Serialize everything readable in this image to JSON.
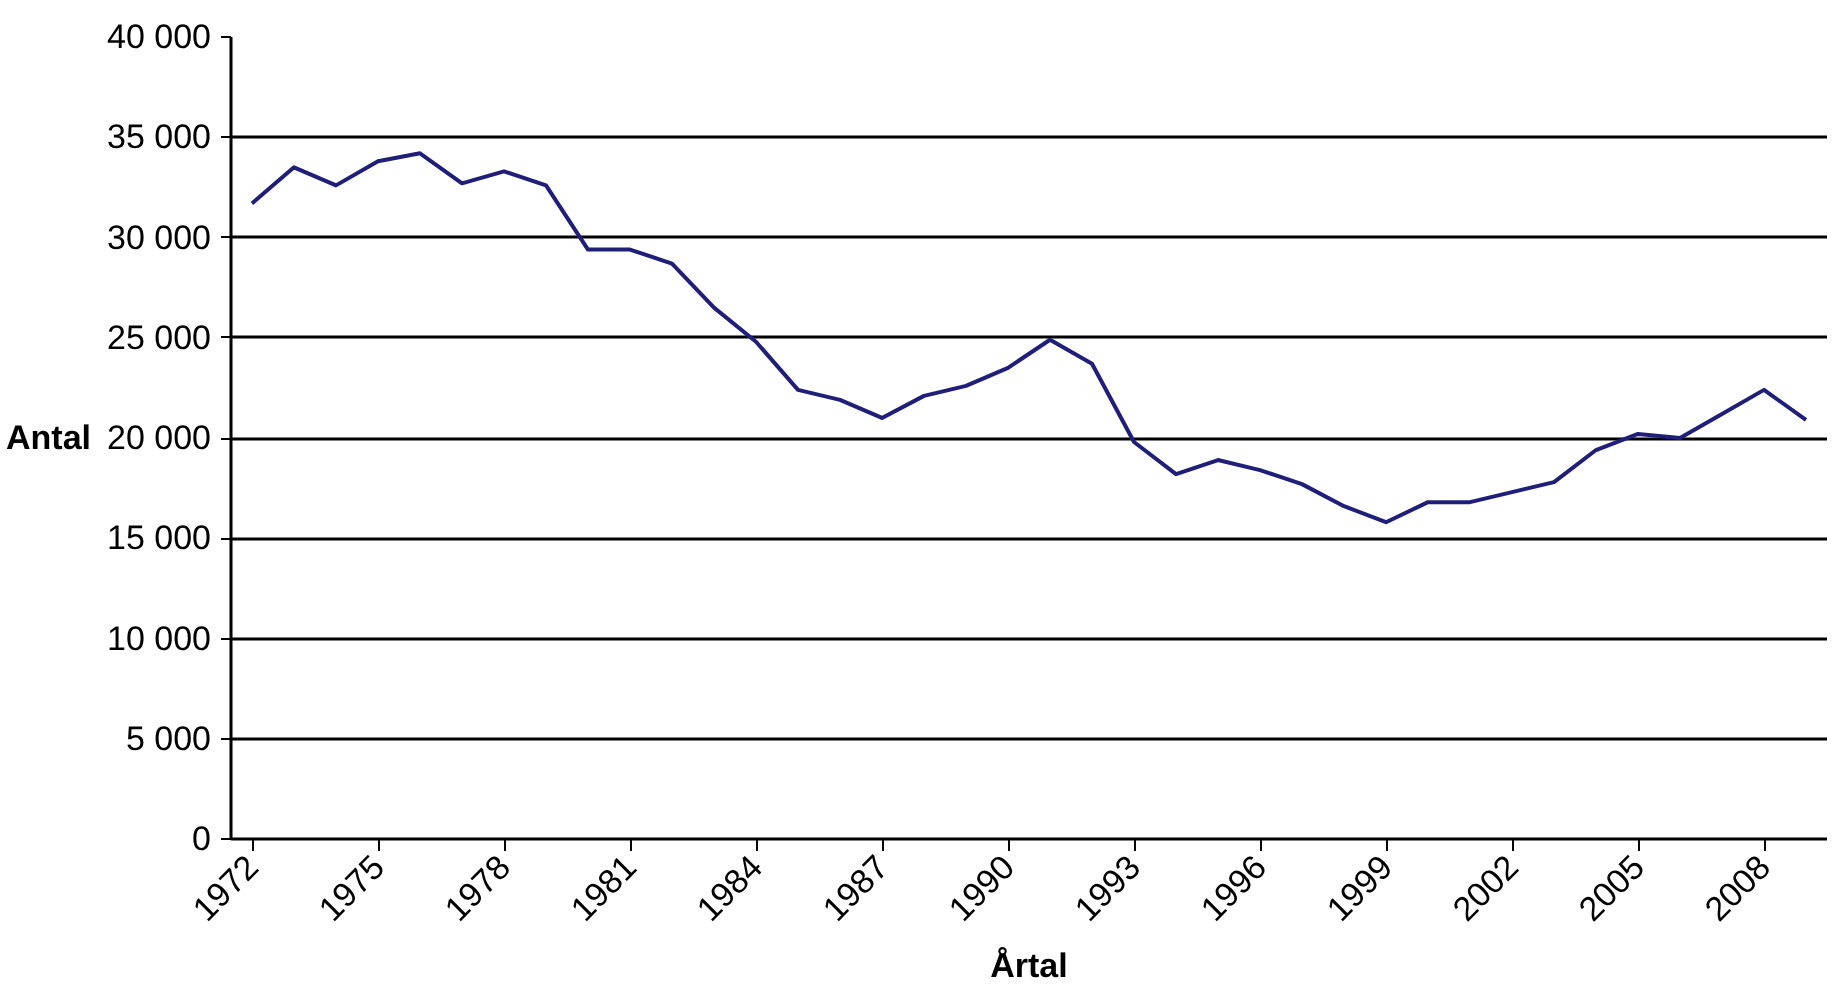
{
  "chart_data": {
    "type": "line",
    "xlabel": "Årtal",
    "ylabel": "Antal",
    "x": [
      1972,
      1973,
      1974,
      1975,
      1976,
      1977,
      1978,
      1979,
      1980,
      1981,
      1982,
      1983,
      1984,
      1985,
      1986,
      1987,
      1988,
      1989,
      1990,
      1991,
      1992,
      1993,
      1994,
      1995,
      1996,
      1997,
      1998,
      1999,
      2000,
      2001,
      2002,
      2003,
      2004,
      2005,
      2006,
      2007,
      2008,
      2009
    ],
    "series": [
      {
        "color": "#1f1f7a",
        "values": [
          31700,
          33500,
          32600,
          33800,
          34200,
          32700,
          33300,
          32600,
          29400,
          29400,
          28700,
          26500,
          24800,
          22400,
          21900,
          21000,
          22100,
          22600,
          23500,
          24900,
          23700,
          19800,
          18200,
          18900,
          18400,
          17700,
          16600,
          15800,
          16800,
          16800,
          17300,
          17800,
          19400,
          20200,
          20000,
          21200,
          22400,
          20900
        ]
      }
    ],
    "xlim": [
      1971.5,
      2009.5
    ],
    "xticks": [
      1972,
      1975,
      1978,
      1981,
      1984,
      1987,
      1990,
      1993,
      1996,
      1999,
      2002,
      2005,
      2008
    ],
    "ylim": [
      0,
      40000
    ],
    "yticks": [
      {
        "value": 0,
        "label": "0"
      },
      {
        "value": 5000,
        "label": "5 000"
      },
      {
        "value": 10000,
        "label": "10 000"
      },
      {
        "value": 15000,
        "label": "15 000"
      },
      {
        "value": 20000,
        "label": "20 000"
      },
      {
        "value": 25000,
        "label": "25 000"
      },
      {
        "value": 30000,
        "label": "30 000"
      },
      {
        "value": 35000,
        "label": "35 000"
      },
      {
        "value": 40000,
        "label": "40 000"
      }
    ],
    "grid": "y",
    "marker": "none",
    "line_style": "solid"
  }
}
